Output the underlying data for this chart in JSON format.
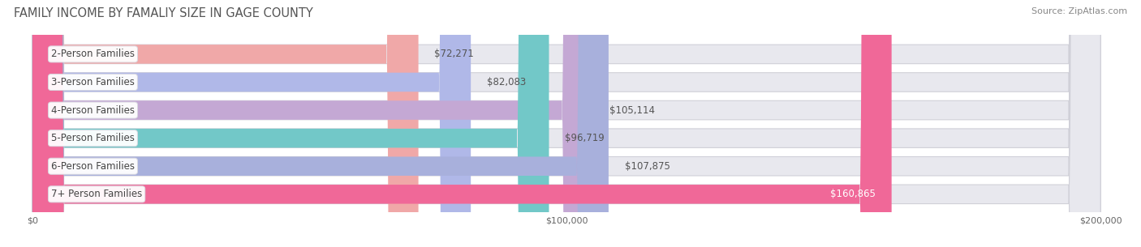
{
  "title": "FAMILY INCOME BY FAMALIY SIZE IN GAGE COUNTY",
  "source": "Source: ZipAtlas.com",
  "categories": [
    "2-Person Families",
    "3-Person Families",
    "4-Person Families",
    "5-Person Families",
    "6-Person Families",
    "7+ Person Families"
  ],
  "values": [
    72271,
    82083,
    105114,
    96719,
    107875,
    160865
  ],
  "bar_colors": [
    "#f0a8a8",
    "#b0b8e8",
    "#c4a8d4",
    "#72c8c8",
    "#a8b0dc",
    "#f06898"
  ],
  "bar_bg_color": "#e8e8ee",
  "label_texts": [
    "$72,271",
    "$82,083",
    "$105,114",
    "$96,719",
    "$107,875",
    "$160,865"
  ],
  "xmax": 200000,
  "xtick_labels": [
    "$0",
    "$100,000",
    "$200,000"
  ],
  "background_color": "#ffffff",
  "title_color": "#555555",
  "source_color": "#888888",
  "bar_height": 0.68,
  "bar_gap": 0.18,
  "title_fontsize": 10.5,
  "source_fontsize": 8,
  "label_fontsize": 8.5,
  "category_fontsize": 8.5,
  "last_label_color": "#ffffff",
  "other_label_color": "#555555",
  "category_label_color": "#444444"
}
